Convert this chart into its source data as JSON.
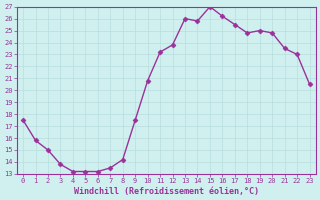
{
  "x": [
    0,
    1,
    2,
    3,
    4,
    5,
    6,
    7,
    8,
    9,
    10,
    11,
    12,
    13,
    14,
    15,
    16,
    17,
    18,
    19,
    20,
    21,
    22,
    23
  ],
  "y": [
    17.5,
    15.8,
    15.0,
    13.8,
    13.2,
    13.2,
    13.2,
    13.5,
    14.2,
    17.5,
    20.8,
    23.2,
    23.8,
    26.0,
    25.8,
    27.0,
    26.2,
    25.5,
    24.8,
    25.0,
    24.8,
    23.5,
    23.0,
    20.5
  ],
  "xlim": [
    -0.5,
    23.5
  ],
  "ylim": [
    13,
    27
  ],
  "yticks": [
    13,
    14,
    15,
    16,
    17,
    18,
    19,
    20,
    21,
    22,
    23,
    24,
    25,
    26,
    27
  ],
  "xticks": [
    0,
    1,
    2,
    3,
    4,
    5,
    6,
    7,
    8,
    9,
    10,
    11,
    12,
    13,
    14,
    15,
    16,
    17,
    18,
    19,
    20,
    21,
    22,
    23
  ],
  "xlabel": "Windchill (Refroidissement éolien,°C)",
  "line_color": "#993399",
  "marker_color": "#993399",
  "bg_color": "#d0f0f0",
  "grid_color": "#b8dede",
  "axis_color": "#993399",
  "tick_color": "#993399"
}
